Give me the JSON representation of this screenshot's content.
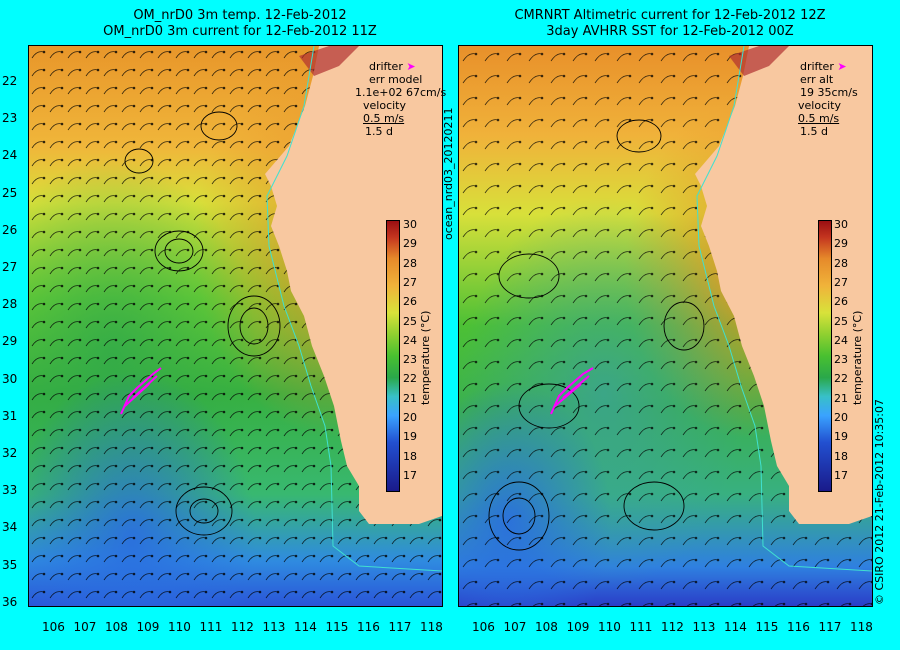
{
  "left_panel": {
    "title_line1": "OM_nrD0 3m temp. 12-Feb-2012",
    "title_line2": "OM_nrD0 3m current for 12-Feb-2012 11Z",
    "legend": {
      "drifter": "drifter",
      "err_label": "err model",
      "err_value": "1.1e+02 67cm/s",
      "velocity_label": "velocity",
      "velocity_scale": "0.5 m/s",
      "duration": "1.5 d"
    },
    "colorbar_label": "temperature (°C)"
  },
  "right_panel": {
    "title_line1": "CMRNRT Altimetric current for 12-Feb-2012 12Z",
    "title_line2": "3day AVHRR SST for 12-Feb-2012 00Z",
    "legend": {
      "drifter": "drifter",
      "err_label": "err alt",
      "err_value": "19 35cm/s",
      "velocity_label": "velocity",
      "velocity_scale": "0.5 m/s",
      "duration": "1.5 d"
    },
    "colorbar_label": "temperature (°C)"
  },
  "side_text_center": "ocean_nrd03_20120211",
  "side_text_right": "© CSIRO 2012   21-Feb-2012 10:35:07",
  "lat_ticks": [
    "22",
    "23",
    "24",
    "25",
    "26",
    "27",
    "28",
    "29",
    "30",
    "31",
    "32",
    "33",
    "34",
    "35",
    "36"
  ],
  "lon_ticks": [
    "106",
    "107",
    "108",
    "109",
    "110",
    "111",
    "112",
    "113",
    "114",
    "115",
    "116",
    "117",
    "118"
  ],
  "colorbar_ticks": [
    "30",
    "29",
    "28",
    "27",
    "26",
    "25",
    "24",
    "23",
    "22",
    "21",
    "20",
    "19",
    "18",
    "17"
  ],
  "colors": {
    "background": "#00ffff",
    "land": "#f8c8a0",
    "drifter": "#ff00ff",
    "coastline_contour": "#40e0d0"
  }
}
